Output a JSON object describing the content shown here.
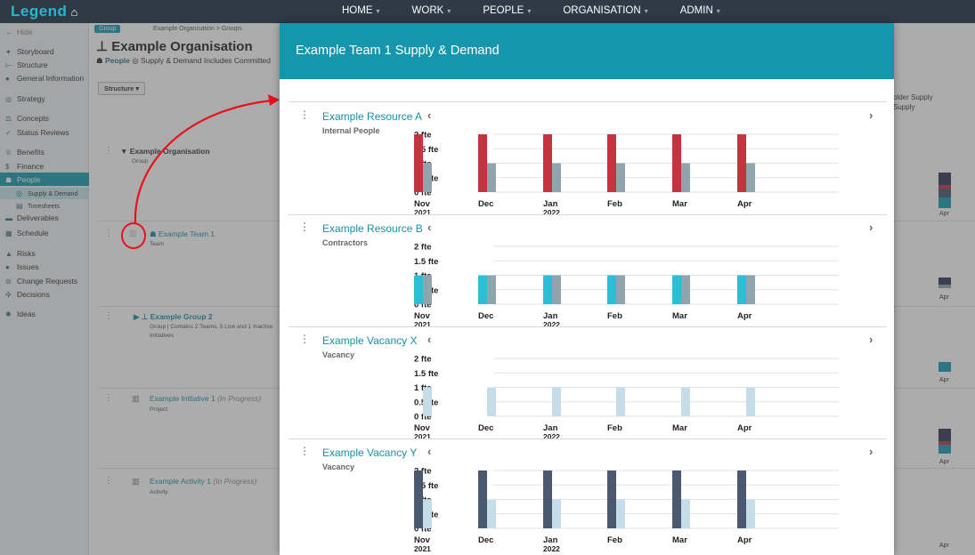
{
  "topbar": {
    "logo": "Legend",
    "home_icon": "home-icon",
    "nav": [
      {
        "label": "HOME"
      },
      {
        "label": "WORK"
      },
      {
        "label": "PEOPLE"
      },
      {
        "label": "ORGANISATION"
      },
      {
        "label": "ADMIN"
      }
    ]
  },
  "sidebar": {
    "hide": "Hide",
    "items": [
      {
        "label": "Storyboard"
      },
      {
        "label": "Structure"
      },
      {
        "label": "General Information"
      },
      {
        "label": "Strategy"
      },
      {
        "label": "Concepts"
      },
      {
        "label": "Status Reviews"
      },
      {
        "label": "Benefits"
      },
      {
        "label": "Finance"
      },
      {
        "label": "People"
      },
      {
        "label": "Supply & Demand"
      },
      {
        "label": "Timesheets"
      },
      {
        "label": "Deliverables"
      },
      {
        "label": "Schedule"
      },
      {
        "label": "Risks"
      },
      {
        "label": "Issues"
      },
      {
        "label": "Change Requests"
      },
      {
        "label": "Decisions"
      },
      {
        "label": "Ideas"
      }
    ]
  },
  "header": {
    "badge": "Group",
    "breadcrumb": "Example Organisation > Groups",
    "title": "Example Organisation",
    "sub_people": "People",
    "sub_supply": "Supply & Demand",
    "sub_includes": "Includes Committed",
    "structure_button": "Structure ▾"
  },
  "rows": [
    {
      "name": "Example Organisation",
      "sub": "Group"
    },
    {
      "name": "Example Team 1",
      "sub": "Team"
    },
    {
      "name": "Example Group 2",
      "sub": "Group | Contains 2 Teams, 5 Live and 1 Inactive",
      "sub2": "Initiatives"
    },
    {
      "name": "Example Initiative 1",
      "status": "(In Progress)",
      "sub": "Project"
    },
    {
      "name": "Example Activity 1",
      "status": "(In Progress)",
      "sub": "Activity"
    }
  ],
  "right_panel": {
    "text1": "older Supply",
    "text2": "Supply",
    "apr": "Apr"
  },
  "modal": {
    "title": "Example Team 1 Supply & Demand",
    "y_ticks": [
      "2 fte",
      "1.5 fte",
      "1 fte",
      "0.5 fte",
      "0 fte"
    ],
    "months": [
      {
        "month": "Nov",
        "year": "2021"
      },
      {
        "month": "Dec",
        "year": ""
      },
      {
        "month": "Jan",
        "year": "2022"
      },
      {
        "month": "Feb",
        "year": ""
      },
      {
        "month": "Mar",
        "year": ""
      },
      {
        "month": "Apr",
        "year": ""
      }
    ],
    "resources": [
      {
        "name": "Example Resource A",
        "type": "Internal People",
        "demand_color": "#c0353e",
        "supply_color": "#90a4ad",
        "demand": [
          2,
          2,
          2,
          2,
          2,
          2
        ],
        "supply": [
          1,
          1,
          1,
          1,
          1,
          1
        ]
      },
      {
        "name": "Example Resource B",
        "type": "Contractors",
        "demand_color": "#2bbfd6",
        "supply_color": "#90a4ad",
        "demand": [
          1,
          1,
          1,
          1,
          1,
          1
        ],
        "supply": [
          1,
          1,
          1,
          1,
          1,
          1
        ]
      },
      {
        "name": "Example Vacancy X",
        "type": "Vacancy",
        "demand_color": "#c5dde9",
        "supply_color": "#c5dde9",
        "demand": [
          0,
          0,
          0,
          0,
          0,
          0
        ],
        "supply": [
          1,
          1,
          1,
          1,
          1,
          1
        ]
      },
      {
        "name": "Example Vacancy Y",
        "type": "Vacancy",
        "demand_color": "#4a5870",
        "supply_color": "#c5dde9",
        "demand": [
          2,
          2,
          2,
          2,
          2,
          2
        ],
        "supply": [
          1,
          1,
          1,
          1,
          1,
          1
        ]
      }
    ]
  },
  "chart_data": [
    {
      "type": "bar",
      "title": "Example Resource A",
      "categories": [
        "Nov 2021",
        "Dec",
        "Jan 2022",
        "Feb",
        "Mar",
        "Apr"
      ],
      "series": [
        {
          "values": [
            2,
            2,
            2,
            2,
            2,
            2
          ]
        },
        {
          "values": [
            1,
            1,
            1,
            1,
            1,
            1
          ]
        }
      ],
      "ylim": [
        0,
        2
      ]
    },
    {
      "type": "bar",
      "title": "Example Resource B",
      "categories": [
        "Nov 2021",
        "Dec",
        "Jan 2022",
        "Feb",
        "Mar",
        "Apr"
      ],
      "series": [
        {
          "values": [
            1,
            1,
            1,
            1,
            1,
            1
          ]
        },
        {
          "values": [
            1,
            1,
            1,
            1,
            1,
            1
          ]
        }
      ],
      "ylim": [
        0,
        2
      ]
    },
    {
      "type": "bar",
      "title": "Example Vacancy X",
      "categories": [
        "Nov 2021",
        "Dec",
        "Jan 2022",
        "Feb",
        "Mar",
        "Apr"
      ],
      "series": [
        {
          "values": [
            1,
            1,
            1,
            1,
            1,
            1
          ]
        }
      ],
      "ylim": [
        0,
        2
      ]
    },
    {
      "type": "bar",
      "title": "Example Vacancy Y",
      "categories": [
        "Nov 2021",
        "Dec",
        "Jan 2022",
        "Feb",
        "Mar",
        "Apr"
      ],
      "series": [
        {
          "values": [
            2,
            2,
            2,
            2,
            2,
            2
          ]
        },
        {
          "values": [
            1,
            1,
            1,
            1,
            1,
            1
          ]
        }
      ],
      "ylim": [
        0,
        2
      ]
    }
  ]
}
